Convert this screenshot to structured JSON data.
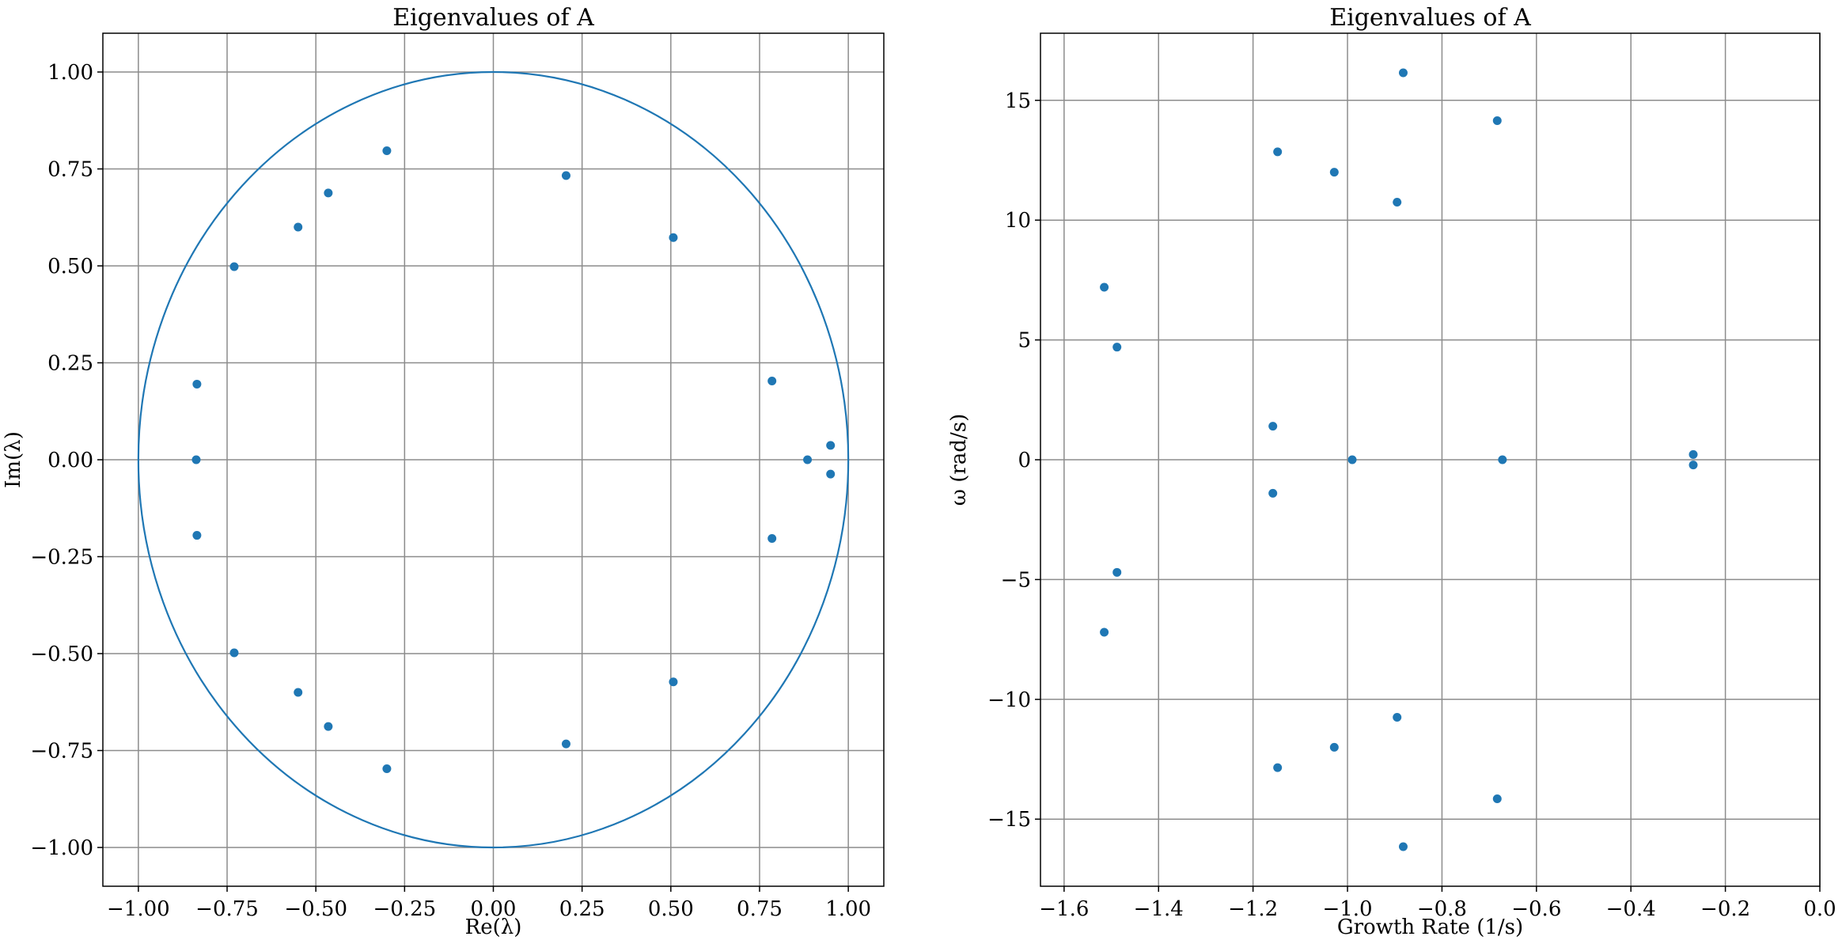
{
  "chart_data": [
    {
      "type": "scatter",
      "title": "Eigenvalues of A",
      "xlabel": "Re(λ)",
      "ylabel": "Im(λ)",
      "xlim": [
        -1.1,
        1.1
      ],
      "ylim": [
        -1.1,
        1.1
      ],
      "xticks": [
        "−1.00",
        "−0.75",
        "−0.50",
        "−0.25",
        "0.00",
        "0.25",
        "0.50",
        "0.75",
        "1.00"
      ],
      "yticks": [
        "−1.00",
        "−0.75",
        "−0.50",
        "−0.25",
        "0.00",
        "0.25",
        "0.50",
        "0.75",
        "1.00"
      ],
      "grid": true,
      "unit_circle": true,
      "color": "#1f77b4",
      "points": [
        {
          "x": -0.835,
          "y": 0.195
        },
        {
          "x": -0.837,
          "y": 0.0
        },
        {
          "x": -0.835,
          "y": -0.195
        },
        {
          "x": -0.73,
          "y": 0.498
        },
        {
          "x": -0.73,
          "y": -0.498
        },
        {
          "x": -0.55,
          "y": 0.6
        },
        {
          "x": -0.55,
          "y": -0.6
        },
        {
          "x": -0.465,
          "y": 0.688
        },
        {
          "x": -0.465,
          "y": -0.688
        },
        {
          "x": -0.3,
          "y": 0.797
        },
        {
          "x": -0.3,
          "y": -0.797
        },
        {
          "x": 0.205,
          "y": 0.733
        },
        {
          "x": 0.205,
          "y": -0.733
        },
        {
          "x": 0.507,
          "y": 0.573
        },
        {
          "x": 0.507,
          "y": -0.573
        },
        {
          "x": 0.785,
          "y": 0.203
        },
        {
          "x": 0.785,
          "y": -0.203
        },
        {
          "x": 0.885,
          "y": 0.0
        },
        {
          "x": 0.95,
          "y": 0.037
        },
        {
          "x": 0.95,
          "y": -0.037
        }
      ]
    },
    {
      "type": "scatter",
      "title": "Eigenvalues of A",
      "xlabel": "Growth Rate (1/s)",
      "ylabel": "ω (rad/s)",
      "xlim": [
        -1.65,
        0.0
      ],
      "ylim": [
        -17.8,
        17.8
      ],
      "xticks": [
        "−1.6",
        "−1.4",
        "−1.2",
        "−1.0",
        "−0.8",
        "−0.6",
        "−0.4",
        "−0.2",
        "0.0"
      ],
      "yticks": [
        "−15",
        "−10",
        "−5",
        "0",
        "5",
        "10",
        "15"
      ],
      "grid": true,
      "color": "#1f77b4",
      "points": [
        {
          "x": -1.515,
          "y": 7.2
        },
        {
          "x": -1.515,
          "y": -7.2
        },
        {
          "x": -1.488,
          "y": 4.7
        },
        {
          "x": -1.488,
          "y": -4.7
        },
        {
          "x": -1.158,
          "y": 1.4
        },
        {
          "x": -1.158,
          "y": -1.4
        },
        {
          "x": -1.148,
          "y": 12.85
        },
        {
          "x": -1.148,
          "y": -12.85
        },
        {
          "x": -1.028,
          "y": 12.0
        },
        {
          "x": -1.028,
          "y": -12.0
        },
        {
          "x": -0.99,
          "y": 0.0
        },
        {
          "x": -0.895,
          "y": 10.75
        },
        {
          "x": -0.895,
          "y": -10.75
        },
        {
          "x": -0.882,
          "y": 16.15
        },
        {
          "x": -0.882,
          "y": -16.15
        },
        {
          "x": -0.683,
          "y": 14.15
        },
        {
          "x": -0.683,
          "y": -14.15
        },
        {
          "x": -0.672,
          "y": 0.0
        },
        {
          "x": -0.268,
          "y": 0.22
        },
        {
          "x": -0.268,
          "y": -0.22
        }
      ]
    }
  ]
}
